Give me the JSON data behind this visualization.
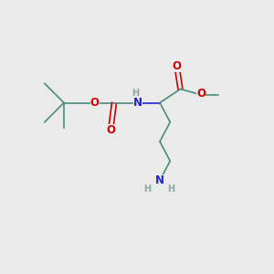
{
  "bg_color": "#eaeaea",
  "bond_color": "#4a8a7e",
  "o_color": "#cc0000",
  "n_color": "#2222cc",
  "h_color": "#8aaa9e",
  "line_width": 1.2,
  "font_size": 8.5,
  "figsize": [
    3.0,
    3.0
  ],
  "dpi": 100,
  "xlim": [
    0,
    12
  ],
  "ylim": [
    0,
    12
  ]
}
